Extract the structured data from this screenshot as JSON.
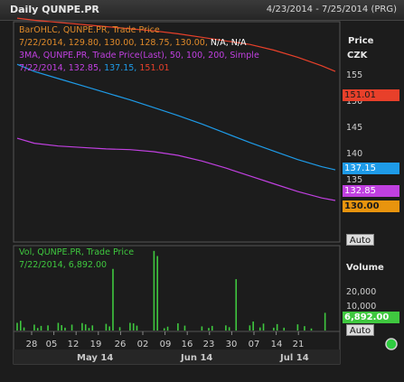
{
  "header": {
    "title": "Daily QUNPE.PR",
    "date_range": "4/23/2014 - 7/25/2014 (PRG)"
  },
  "price_panel": {
    "legend_line1": "BarOHLC, QUNPE.PR, Trade Price",
    "legend_line2_date": "7/22/2014,",
    "legend_line2_ohlc": "129.80, 130.00, 128.75, 130.00,",
    "legend_line2_na": "N/A, N/A",
    "legend_line3": "3MA, QUNPE.PR, Trade Price(Last), 50, 100, 200, Simple",
    "legend_line4_date": "7/22/2014,",
    "legend_line4_v1": "132.85,",
    "legend_line4_v2": "137.15,",
    "legend_line4_v3": "151.01",
    "axis_title": "Price",
    "axis_unit": "CZK",
    "ticks": [
      "155",
      "150",
      "145",
      "140",
      "135"
    ],
    "tags": {
      "ma200": "151.01",
      "ma100": "137.15",
      "ma50": "132.85",
      "last": "130.00"
    },
    "auto_label": "Auto"
  },
  "volume_panel": {
    "legend_line1": "Vol, QUNPE.PR, Trade Price",
    "legend_line2": "7/22/2014, 6,892.00",
    "axis_title": "Volume",
    "ticks": [
      "20,000",
      "10,000"
    ],
    "tag": "6,892.00",
    "auto_label": "Auto"
  },
  "x_axis": {
    "ticks": [
      "28",
      "05",
      "12",
      "19",
      "26",
      "02",
      "09",
      "16",
      "23",
      "30",
      "07",
      "14",
      "21"
    ],
    "months": [
      "May 14",
      "Jun 14",
      "Jul 14"
    ]
  },
  "colors": {
    "bars": "#e08a2a",
    "ma200": "#e8402a",
    "ma100": "#1e9be8",
    "ma50": "#c040e0",
    "volume": "#3fc83f",
    "background": "#1c1c1c"
  },
  "chart_data": [
    {
      "type": "line",
      "title": "Daily QUNPE.PR",
      "ylabel": "Price CZK",
      "ylim": [
        127,
        158
      ],
      "x": [
        "2014-04-23",
        "2014-04-28",
        "2014-05-05",
        "2014-05-12",
        "2014-05-19",
        "2014-05-26",
        "2014-06-02",
        "2014-06-09",
        "2014-06-16",
        "2014-06-23",
        "2014-06-30",
        "2014-07-07",
        "2014-07-14",
        "2014-07-21",
        "2014-07-25"
      ],
      "series": [
        {
          "name": "200",
          "values": [
            158.5,
            158.2,
            157.9,
            157.6,
            157.3,
            157.0,
            156.7,
            156.3,
            155.8,
            155.3,
            154.8,
            154.0,
            153.0,
            151.8,
            151.0
          ]
        },
        {
          "name": "100",
          "values": [
            152.0,
            151.0,
            150.0,
            149.0,
            148.0,
            147.0,
            145.9,
            144.8,
            143.6,
            142.3,
            141.0,
            139.8,
            138.6,
            137.6,
            137.15
          ]
        },
        {
          "name": "50",
          "values": [
            141.6,
            140.9,
            140.5,
            140.3,
            140.1,
            140.0,
            139.7,
            139.2,
            138.4,
            137.4,
            136.3,
            135.2,
            134.1,
            133.2,
            132.85
          ]
        }
      ]
    },
    {
      "type": "bar",
      "title": "Vol, QUNPE.PR, Trade Price",
      "ylabel": "Volume",
      "ylim": [
        0,
        32000
      ],
      "x": [
        "2014-04-23",
        "2014-04-24",
        "2014-04-25",
        "2014-04-28",
        "2014-04-29",
        "2014-04-30",
        "2014-05-02",
        "2014-05-05",
        "2014-05-06",
        "2014-05-07",
        "2014-05-09",
        "2014-05-12",
        "2014-05-13",
        "2014-05-14",
        "2014-05-15",
        "2014-05-19",
        "2014-05-20",
        "2014-05-21",
        "2014-05-23",
        "2014-05-26",
        "2014-05-27",
        "2014-05-28",
        "2014-06-02",
        "2014-06-03",
        "2014-06-05",
        "2014-06-06",
        "2014-06-09",
        "2014-06-11",
        "2014-06-16",
        "2014-06-18",
        "2014-06-19",
        "2014-06-23",
        "2014-06-24",
        "2014-06-26",
        "2014-06-30",
        "2014-07-01",
        "2014-07-03",
        "2014-07-04",
        "2014-07-07",
        "2014-07-08",
        "2014-07-10",
        "2014-07-14",
        "2014-07-16",
        "2014-07-18",
        "2014-07-22"
      ],
      "values": [
        3000,
        3800,
        1200,
        2300,
        1000,
        1800,
        2000,
        3000,
        2100,
        1100,
        2300,
        2900,
        2400,
        1000,
        2000,
        2600,
        1600,
        24000,
        1300,
        3000,
        2800,
        1900,
        31000,
        29000,
        900,
        1500,
        2800,
        1900,
        1600,
        1000,
        1800,
        2000,
        1300,
        20000,
        2000,
        3500,
        1200,
        2700,
        1100,
        2500,
        1100,
        2400,
        1700,
        800,
        6892
      ]
    }
  ]
}
